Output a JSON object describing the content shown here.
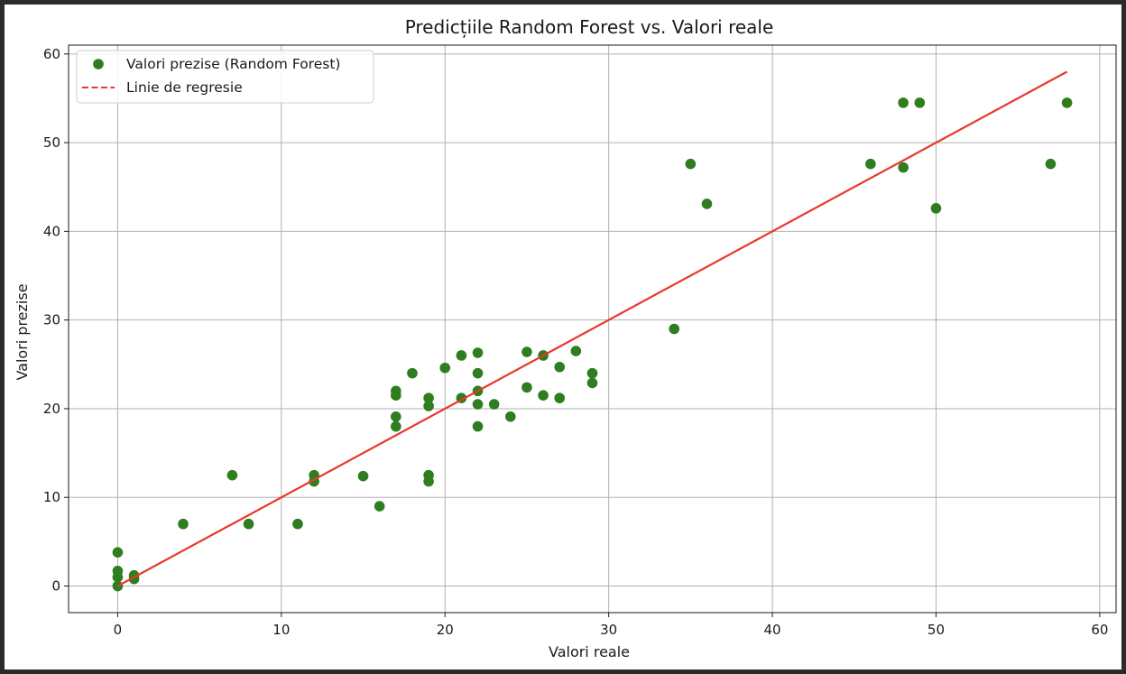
{
  "chart_data": {
    "type": "scatter",
    "title": "Predicțiile Random Forest vs. Valori reale",
    "xlabel": "Valori reale",
    "ylabel": "Valori prezise",
    "xlim": [
      -3,
      61
    ],
    "ylim": [
      -3,
      61
    ],
    "xticks": [
      0,
      10,
      20,
      30,
      40,
      50,
      60
    ],
    "yticks": [
      0,
      10,
      20,
      30,
      40,
      50,
      60
    ],
    "grid": true,
    "legend_position": "top-left",
    "series": [
      {
        "name": "Valori prezise (Random Forest)",
        "kind": "scatter",
        "color": "#2e7d1f",
        "points": [
          [
            0,
            3.8
          ],
          [
            0,
            1.7
          ],
          [
            0,
            1.0
          ],
          [
            0,
            0.0
          ],
          [
            1,
            1.2
          ],
          [
            1,
            0.8
          ],
          [
            4,
            7.0
          ],
          [
            7,
            12.5
          ],
          [
            8,
            7.0
          ],
          [
            11,
            7.0
          ],
          [
            12,
            12.5
          ],
          [
            12,
            11.8
          ],
          [
            15,
            12.4
          ],
          [
            16,
            9.0
          ],
          [
            17,
            22.0
          ],
          [
            17,
            21.5
          ],
          [
            17,
            19.1
          ],
          [
            17,
            18.0
          ],
          [
            18,
            24.0
          ],
          [
            19,
            21.2
          ],
          [
            19,
            20.3
          ],
          [
            19,
            12.5
          ],
          [
            19,
            11.8
          ],
          [
            20,
            24.6
          ],
          [
            21,
            26.0
          ],
          [
            21,
            21.2
          ],
          [
            22,
            26.3
          ],
          [
            22,
            24.0
          ],
          [
            22,
            22.0
          ],
          [
            22,
            20.5
          ],
          [
            22,
            18.0
          ],
          [
            23,
            20.5
          ],
          [
            24,
            19.1
          ],
          [
            25,
            26.4
          ],
          [
            25,
            22.4
          ],
          [
            26,
            26.0
          ],
          [
            26,
            21.5
          ],
          [
            27,
            24.7
          ],
          [
            27,
            21.2
          ],
          [
            28,
            26.5
          ],
          [
            29,
            24.0
          ],
          [
            29,
            22.9
          ],
          [
            34,
            29.0
          ],
          [
            35,
            47.6
          ],
          [
            36,
            43.1
          ],
          [
            46,
            47.6
          ],
          [
            48,
            54.5
          ],
          [
            48,
            47.2
          ],
          [
            49,
            54.5
          ],
          [
            50,
            42.6
          ],
          [
            57,
            47.6
          ],
          [
            58,
            54.5
          ]
        ]
      },
      {
        "name": "Linie de regresie",
        "kind": "line",
        "color": "#e8382a",
        "points": [
          [
            0,
            0
          ],
          [
            58,
            58
          ]
        ]
      }
    ]
  }
}
